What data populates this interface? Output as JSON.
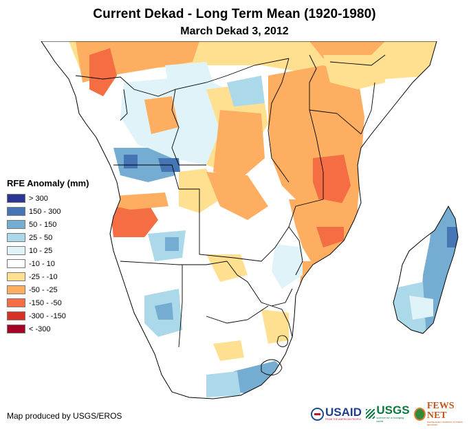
{
  "header": {
    "title": "Current Dekad - Long Term Mean (1920-1980)",
    "subtitle": "March Dekad 3, 2012"
  },
  "legend": {
    "title": "RFE Anomaly (mm)",
    "items": [
      {
        "label": "> 300",
        "color": "#2b3592"
      },
      {
        "label": "150 - 300",
        "color": "#4575b4"
      },
      {
        "label": "50 - 150",
        "color": "#74add1"
      },
      {
        "label": "25 - 50",
        "color": "#abd9e9"
      },
      {
        "label": "10 - 25",
        "color": "#e0f3f8"
      },
      {
        "label": "-10 - 10",
        "color": "#ffffff"
      },
      {
        "label": "-25 - -10",
        "color": "#fee090"
      },
      {
        "label": "-50 - -25",
        "color": "#fdae61"
      },
      {
        "label": "-150 - -50",
        "color": "#f46d43"
      },
      {
        "label": "-300 - -150",
        "color": "#d73027"
      },
      {
        "label": "< -300",
        "color": "#a50026"
      }
    ]
  },
  "map": {
    "region": "Southern Africa and Madagascar",
    "variable": "RFE Anomaly (mm)"
  },
  "footer": {
    "credit": "Map produced by USGS/EROS",
    "logos": [
      {
        "name": "USAID",
        "tagline": "FROM THE AMERICAN PEOPLE"
      },
      {
        "name": "USGS",
        "tagline": "science for a changing world"
      },
      {
        "name": "FEWS NET",
        "tagline": "FAMINE EARLY WARNING SYSTEMS NETWORK"
      }
    ]
  }
}
